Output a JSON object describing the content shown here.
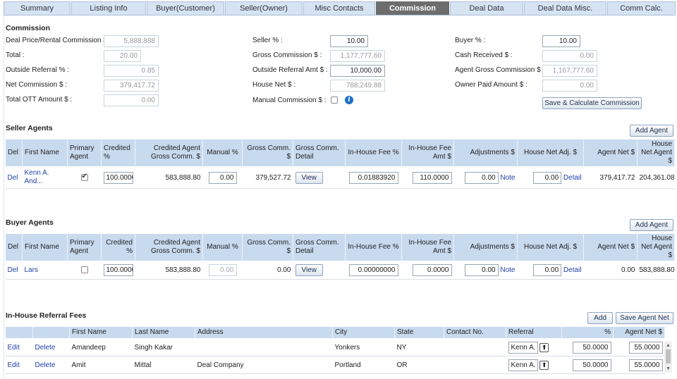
{
  "tabs": [
    "Summary",
    "Listing Info",
    "Buyer(Customer)",
    "Seller(Owner)",
    "Misc Contacts",
    "Commission",
    "Deal Data",
    "Deal Data Misc.",
    "Comm Calc."
  ],
  "commission": {
    "title": "Commission",
    "deal_price_label": "Deal Price/Rental Commission $ :",
    "deal_price": "5,888,888",
    "total_label": "Total :",
    "total": "20.00",
    "outside_referral_pct_label": "Outside Referral % :",
    "outside_referral_pct": "0.85",
    "net_commission_label": "Net Commission $ :",
    "net_commission": "379,417.72",
    "total_ott_label": "Total OTT Amount $ :",
    "total_ott": "0.00",
    "seller_pct_label": "Seller % :",
    "seller_pct": "10.00",
    "gross_commission_label": "Gross Commission $ :",
    "gross_commission": "1,177,777.60",
    "outside_referral_amt_label": "Outside Referral Amt $ :",
    "outside_referral_amt": "10,000.00",
    "house_net_label": "House Net $ :",
    "house_net": "788,249.88",
    "manual_commission_label": "Manual Commission $ :",
    "buyer_pct_label": "Buyer % :",
    "buyer_pct": "10.00",
    "cash_received_label": "Cash Received $ :",
    "cash_received": "0.00",
    "agent_gross_label": "Agent Gross Commission $ :",
    "agent_gross": "1,167,777.60",
    "owner_paid_label": "Owner Paid Amount $ :",
    "owner_paid": "0.00",
    "save_calc_button": "Save & Calculate Commission"
  },
  "agent_headers": {
    "del": "Del",
    "first_name": "First Name",
    "primary": "Primary Agent",
    "credited": "Credited %",
    "credited_gross": "Credited Agent Gross Comm. $",
    "manual_pct": "Manual %",
    "gross_comm": "Gross Comm. $",
    "gross_detail": "Gross Comm. Detail",
    "inhouse_pct": "In-House Fee %",
    "inhouse_amt": "In-House Fee Amt $",
    "adjustments": "Adjustments $",
    "house_net_adj": "House Net Adj. $",
    "agent_net": "Agent Net $",
    "house_net_agent": "House Net Agent $"
  },
  "seller_agents": {
    "title": "Seller Agents",
    "add_button": "Add Agent",
    "rows": [
      {
        "del": "Del",
        "first_name": "Kenn A. And...",
        "credited": "100.0000",
        "credited_gross": "583,888.80",
        "manual_pct": "0.00",
        "gross_comm": "379,527.72",
        "view": "View",
        "inhouse_pct": "0.01883920",
        "inhouse_amt": "110.0000",
        "adjustments": "0.00",
        "note": "Note",
        "house_net_adj": "0.00",
        "detail": "Detail",
        "agent_net": "379,417.72",
        "house_net_agent": "204,361.08"
      }
    ]
  },
  "buyer_agents": {
    "title": "Buyer Agents",
    "add_button": "Add Agent",
    "rows": [
      {
        "del": "Del",
        "first_name": "Lars",
        "credited": "100.0000",
        "credited_gross": "583,888.80",
        "manual_pct": "0.00",
        "gross_comm": "0.00",
        "view": "View",
        "inhouse_pct": "0.00000000",
        "inhouse_amt": "0.0000",
        "adjustments": "0.00",
        "note": "Note",
        "house_net_adj": "0.00",
        "detail": "Detail",
        "agent_net": "0.00",
        "house_net_agent": "583,888.80"
      }
    ]
  },
  "referral_fees": {
    "title": "In-House Referral Fees",
    "add_button": "Add",
    "save_button": "Save Agent Net",
    "headers": {
      "first_name": "First Name",
      "last_name": "Last Name",
      "address": "Address",
      "city": "City",
      "state": "State",
      "contact": "Contact No.",
      "referral": "Referral",
      "pct": "%",
      "agent_net": "Agent Net $"
    },
    "rows": [
      {
        "edit": "Edit",
        "delete": "Delete",
        "first_name": "Amandeep",
        "last_name": "Singh Kakar",
        "address": "",
        "city": "Yonkers",
        "state": "NY",
        "contact": "",
        "referral": "Kenn A.",
        "pct": "50.0000",
        "agent_net": "55.0000"
      },
      {
        "edit": "Edit",
        "delete": "Delete",
        "first_name": "Amit",
        "last_name": "Mittal",
        "address": "Deal Company",
        "city": "Portland",
        "state": "OR",
        "contact": "",
        "referral": "Kenn A.",
        "pct": "50.0000",
        "agent_net": "55.0000"
      }
    ]
  }
}
